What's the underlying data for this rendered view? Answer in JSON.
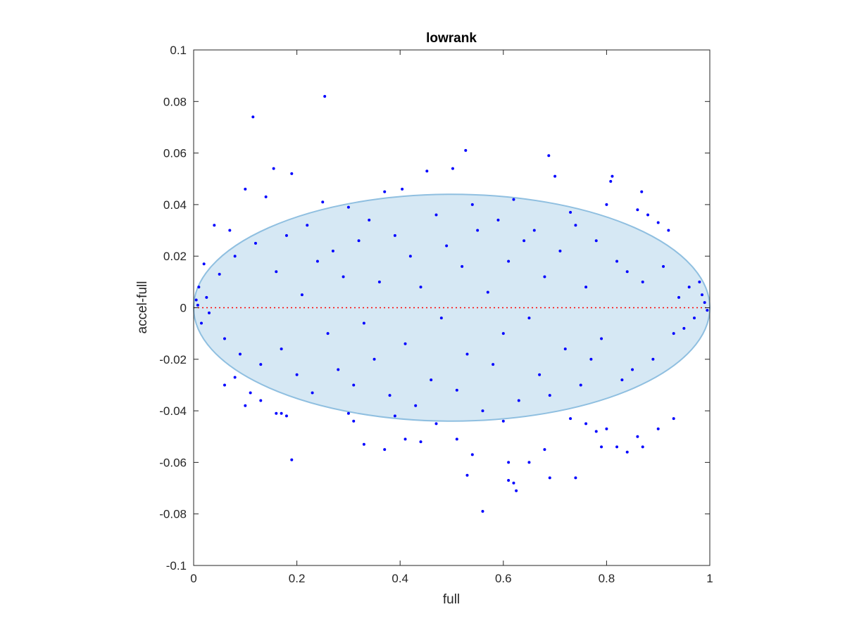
{
  "chart_data": {
    "type": "scatter",
    "title": "lowrank",
    "xlabel": "full",
    "ylabel": "accel-full",
    "xlim": [
      0,
      1
    ],
    "ylim": [
      -0.1,
      0.1
    ],
    "x_ticks": [
      0,
      0.2,
      0.4,
      0.6,
      0.8,
      1
    ],
    "x_tick_labels": [
      "0",
      "0.2",
      "0.4",
      "0.6",
      "0.8",
      "1"
    ],
    "y_ticks": [
      -0.1,
      -0.08,
      -0.06,
      -0.04,
      -0.02,
      0,
      0.02,
      0.04,
      0.06,
      0.08,
      0.1
    ],
    "y_tick_labels": [
      "-0.1",
      "-0.08",
      "-0.06",
      "-0.04",
      "-0.02",
      "0",
      "0.02",
      "0.04",
      "0.06",
      "0.08",
      "0.1"
    ],
    "grid": false,
    "reference_line": {
      "y": 0,
      "style": "dotted",
      "color": "#ff0000"
    },
    "ellipse": {
      "center": [
        0.5,
        0
      ],
      "x_semi_axis": 0.5,
      "y_semi_axis": 0.044,
      "fill": "#d6e8f4",
      "stroke": "#8fbfe0"
    },
    "marker_color": "#0000ff",
    "series": [
      {
        "points": [
          [
            0.254,
            0.082
          ],
          [
            0.115,
            0.074
          ],
          [
            0.527,
            0.061
          ],
          [
            0.688,
            0.059
          ],
          [
            0.155,
            0.054
          ],
          [
            0.19,
            0.052
          ],
          [
            0.452,
            0.053
          ],
          [
            0.502,
            0.054
          ],
          [
            0.7,
            0.051
          ],
          [
            0.811,
            0.051
          ],
          [
            0.808,
            0.049
          ],
          [
            0.1,
            0.046
          ],
          [
            0.404,
            0.046
          ],
          [
            0.868,
            0.045
          ],
          [
            0.14,
            0.043
          ],
          [
            0.37,
            0.045
          ],
          [
            0.54,
            0.04
          ],
          [
            0.8,
            0.04
          ],
          [
            0.86,
            0.038
          ],
          [
            0.88,
            0.036
          ],
          [
            0.92,
            0.03
          ],
          [
            0.9,
            0.033
          ],
          [
            0.04,
            0.032
          ],
          [
            0.07,
            0.03
          ],
          [
            0.62,
            0.042
          ],
          [
            0.25,
            0.041
          ],
          [
            0.3,
            0.039
          ],
          [
            0.73,
            0.037
          ],
          [
            0.02,
            0.017
          ],
          [
            0.01,
            0.008
          ],
          [
            0.005,
            0.003
          ],
          [
            0.03,
            -0.002
          ],
          [
            0.015,
            -0.006
          ],
          [
            0.008,
            0.001
          ],
          [
            0.025,
            0.004
          ],
          [
            0.99,
            0.002
          ],
          [
            0.995,
            -0.001
          ],
          [
            0.985,
            0.005
          ],
          [
            0.97,
            -0.004
          ],
          [
            0.96,
            0.008
          ],
          [
            0.98,
            0.01
          ],
          [
            0.95,
            -0.008
          ],
          [
            0.94,
            0.004
          ],
          [
            0.93,
            -0.01
          ],
          [
            0.05,
            0.013
          ],
          [
            0.06,
            -0.012
          ],
          [
            0.08,
            0.02
          ],
          [
            0.09,
            -0.018
          ],
          [
            0.12,
            0.025
          ],
          [
            0.13,
            -0.022
          ],
          [
            0.16,
            0.014
          ],
          [
            0.17,
            -0.016
          ],
          [
            0.18,
            0.028
          ],
          [
            0.2,
            -0.026
          ],
          [
            0.21,
            0.005
          ],
          [
            0.22,
            0.032
          ],
          [
            0.23,
            -0.033
          ],
          [
            0.24,
            0.018
          ],
          [
            0.26,
            -0.01
          ],
          [
            0.27,
            0.022
          ],
          [
            0.28,
            -0.024
          ],
          [
            0.29,
            0.012
          ],
          [
            0.31,
            -0.03
          ],
          [
            0.32,
            0.026
          ],
          [
            0.33,
            -0.006
          ],
          [
            0.34,
            0.034
          ],
          [
            0.35,
            -0.02
          ],
          [
            0.36,
            0.01
          ],
          [
            0.38,
            -0.034
          ],
          [
            0.39,
            0.028
          ],
          [
            0.41,
            -0.014
          ],
          [
            0.42,
            0.02
          ],
          [
            0.43,
            -0.038
          ],
          [
            0.44,
            0.008
          ],
          [
            0.46,
            -0.028
          ],
          [
            0.47,
            0.036
          ],
          [
            0.48,
            -0.004
          ],
          [
            0.49,
            0.024
          ],
          [
            0.51,
            -0.032
          ],
          [
            0.52,
            0.016
          ],
          [
            0.53,
            -0.018
          ],
          [
            0.55,
            0.03
          ],
          [
            0.56,
            -0.04
          ],
          [
            0.57,
            0.006
          ],
          [
            0.58,
            -0.022
          ],
          [
            0.59,
            0.034
          ],
          [
            0.6,
            -0.01
          ],
          [
            0.61,
            0.018
          ],
          [
            0.63,
            -0.036
          ],
          [
            0.64,
            0.026
          ],
          [
            0.65,
            -0.004
          ],
          [
            0.66,
            0.03
          ],
          [
            0.67,
            -0.026
          ],
          [
            0.68,
            0.012
          ],
          [
            0.69,
            -0.034
          ],
          [
            0.71,
            0.022
          ],
          [
            0.72,
            -0.016
          ],
          [
            0.74,
            0.032
          ],
          [
            0.75,
            -0.03
          ],
          [
            0.76,
            0.008
          ],
          [
            0.77,
            -0.02
          ],
          [
            0.78,
            0.026
          ],
          [
            0.79,
            -0.012
          ],
          [
            0.82,
            0.018
          ],
          [
            0.83,
            -0.028
          ],
          [
            0.84,
            0.014
          ],
          [
            0.85,
            -0.024
          ],
          [
            0.87,
            0.01
          ],
          [
            0.89,
            -0.02
          ],
          [
            0.91,
            0.016
          ],
          [
            0.39,
            -0.042
          ],
          [
            0.47,
            -0.045
          ],
          [
            0.6,
            -0.044
          ],
          [
            0.73,
            -0.043
          ],
          [
            0.19,
            -0.059
          ],
          [
            0.33,
            -0.053
          ],
          [
            0.37,
            -0.055
          ],
          [
            0.41,
            -0.051
          ],
          [
            0.44,
            -0.052
          ],
          [
            0.51,
            -0.051
          ],
          [
            0.54,
            -0.057
          ],
          [
            0.61,
            -0.06
          ],
          [
            0.65,
            -0.06
          ],
          [
            0.68,
            -0.055
          ],
          [
            0.61,
            -0.067
          ],
          [
            0.62,
            -0.068
          ],
          [
            0.625,
            -0.071
          ],
          [
            0.69,
            -0.066
          ],
          [
            0.53,
            -0.065
          ],
          [
            0.56,
            -0.079
          ],
          [
            0.74,
            -0.066
          ],
          [
            0.79,
            -0.054
          ],
          [
            0.82,
            -0.054
          ],
          [
            0.84,
            -0.056
          ],
          [
            0.87,
            -0.054
          ],
          [
            0.86,
            -0.05
          ],
          [
            0.9,
            -0.047
          ],
          [
            0.93,
            -0.043
          ],
          [
            0.16,
            -0.041
          ],
          [
            0.17,
            -0.041
          ],
          [
            0.18,
            -0.042
          ],
          [
            0.13,
            -0.036
          ],
          [
            0.06,
            -0.03
          ],
          [
            0.08,
            -0.027
          ],
          [
            0.11,
            -0.033
          ],
          [
            0.1,
            -0.038
          ],
          [
            0.3,
            -0.041
          ],
          [
            0.31,
            -0.044
          ],
          [
            0.76,
            -0.045
          ],
          [
            0.78,
            -0.048
          ],
          [
            0.8,
            -0.047
          ]
        ]
      }
    ]
  }
}
